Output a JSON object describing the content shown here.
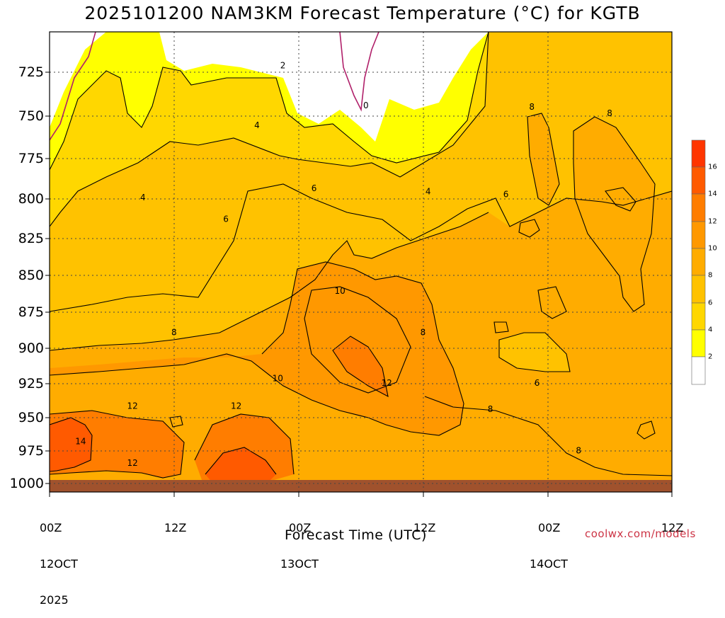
{
  "title": "2025101200 NAM3KM Forecast Temperature (°C) for KGTB",
  "xlabel": "Forecast Time (UTC)",
  "credit": "coolwx.com/models",
  "colors": {
    "c0": "#ffffff",
    "c2": "#ffff00",
    "c4": "#ffd700",
    "c6": "#ffc200",
    "c8": "#ffac00",
    "c10": "#ff9800",
    "c12": "#ff7d00",
    "c14": "#ff5a00",
    "c16": "#ff3500",
    "ground": "#a0522d",
    "contour": "#000000",
    "freezing": "#b0206a"
  },
  "chart_data": {
    "type": "heatmap",
    "title": "2025101200 NAM3KM Forecast Temperature (°C) for KGTB",
    "xlabel": "Forecast Time (UTC)",
    "ylabel": "",
    "y_ticks": [
      "725",
      "750",
      "775",
      "800",
      "825",
      "850",
      "875",
      "900",
      "925",
      "950",
      "975",
      "1000"
    ],
    "y_range_hpa": [
      700,
      1000
    ],
    "x_ticks": [
      {
        "l1": "00Z",
        "l2": "12OCT",
        "l3": "2025"
      },
      {
        "l1": "12Z",
        "l2": "",
        "l3": ""
      },
      {
        "l1": "00Z",
        "l2": "13OCT",
        "l3": ""
      },
      {
        "l1": "12Z",
        "l2": "",
        "l3": ""
      },
      {
        "l1": "00Z",
        "l2": "14OCT",
        "l3": ""
      },
      {
        "l1": "12Z",
        "l2": "",
        "l3": ""
      }
    ],
    "x_range_hours": [
      0,
      60
    ],
    "colorbar_levels": [
      "2",
      "4",
      "6",
      "8",
      "10",
      "12",
      "14",
      "16"
    ],
    "contour_labels": [
      {
        "t": "0",
        "h": 30.5,
        "p": 748
      },
      {
        "t": "2",
        "h": 22.5,
        "p": 722
      },
      {
        "t": "4",
        "h": 20,
        "p": 761
      },
      {
        "t": "4",
        "h": 9,
        "p": 808
      },
      {
        "t": "4",
        "h": 36.5,
        "p": 804
      },
      {
        "t": "6",
        "h": 25.5,
        "p": 802
      },
      {
        "t": "6",
        "h": 17,
        "p": 822
      },
      {
        "t": "6",
        "h": 44,
        "p": 806
      },
      {
        "t": "6",
        "h": 47,
        "p": 929
      },
      {
        "t": "8",
        "h": 46.5,
        "p": 749
      },
      {
        "t": "8",
        "h": 54,
        "p": 753
      },
      {
        "t": "8",
        "h": 12,
        "p": 896
      },
      {
        "t": "8",
        "h": 36,
        "p": 896
      },
      {
        "t": "8",
        "h": 42.5,
        "p": 946
      },
      {
        "t": "8",
        "h": 51,
        "p": 973
      },
      {
        "t": "10",
        "h": 28,
        "p": 869
      },
      {
        "t": "10",
        "h": 22,
        "p": 926
      },
      {
        "t": "12",
        "h": 8,
        "p": 944
      },
      {
        "t": "12",
        "h": 18,
        "p": 944
      },
      {
        "t": "12",
        "h": 32.5,
        "p": 929
      },
      {
        "t": "12",
        "h": 8,
        "p": 981
      },
      {
        "t": "14",
        "h": 3,
        "p": 967
      }
    ]
  }
}
